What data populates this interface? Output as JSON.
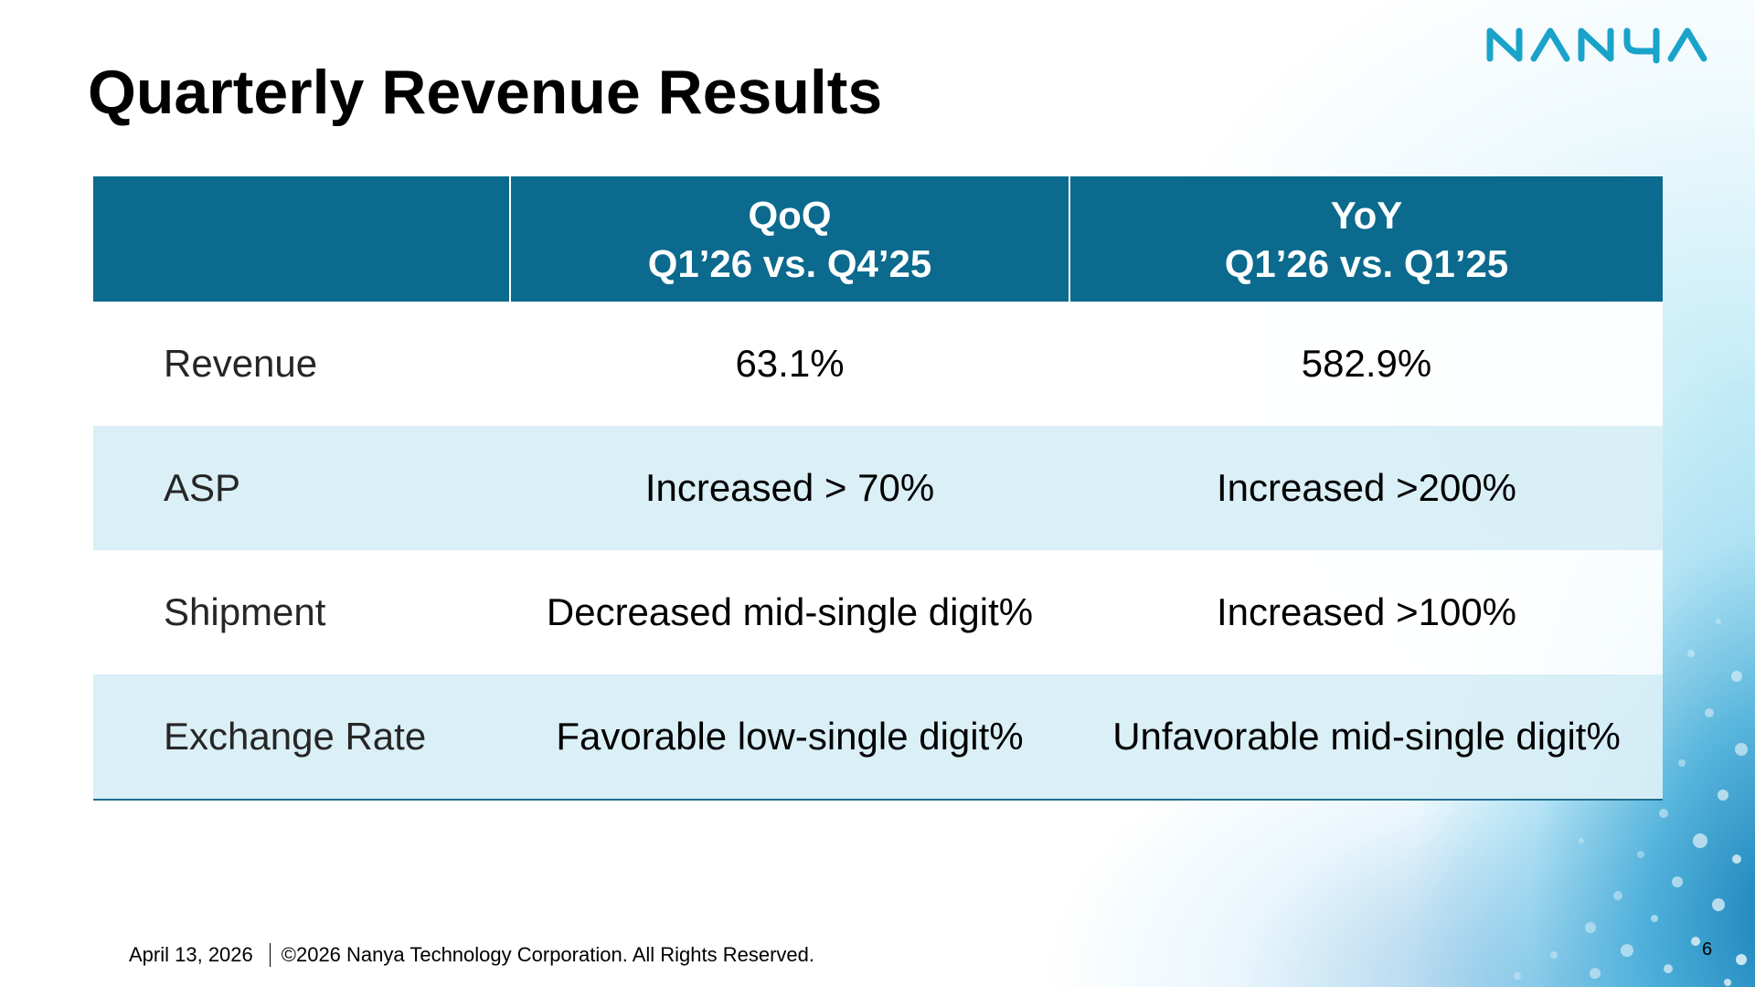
{
  "slide": {
    "title": "Quarterly Revenue Results",
    "brand": "NANYA",
    "page_number": "6"
  },
  "table": {
    "headers": [
      {
        "line1": "",
        "line2": ""
      },
      {
        "line1": "QoQ",
        "line2": "Q1’26 vs. Q4’25"
      },
      {
        "line1": "YoY",
        "line2": "Q1’26 vs. Q1’25"
      }
    ],
    "rows": [
      {
        "label": "Revenue",
        "qoq": "63.1%",
        "yoy": "582.9%"
      },
      {
        "label": "ASP",
        "qoq": "Increased > 70%",
        "yoy": "Increased >200%"
      },
      {
        "label": "Shipment",
        "qoq": "Decreased mid-single digit%",
        "yoy": "Increased >100%"
      },
      {
        "label": "Exchange Rate",
        "qoq": "Favorable low-single digit%",
        "yoy": "Unfavorable mid-single digit%"
      }
    ]
  },
  "footer": {
    "date": "April 13, 2026",
    "copyright": "©2026 Nanya Technology Corporation. All Rights Reserved."
  },
  "colors": {
    "header_bg": "#0b6a8d",
    "shaded_row": "#d8eef6",
    "brand_blue": "#1aa3c9"
  }
}
